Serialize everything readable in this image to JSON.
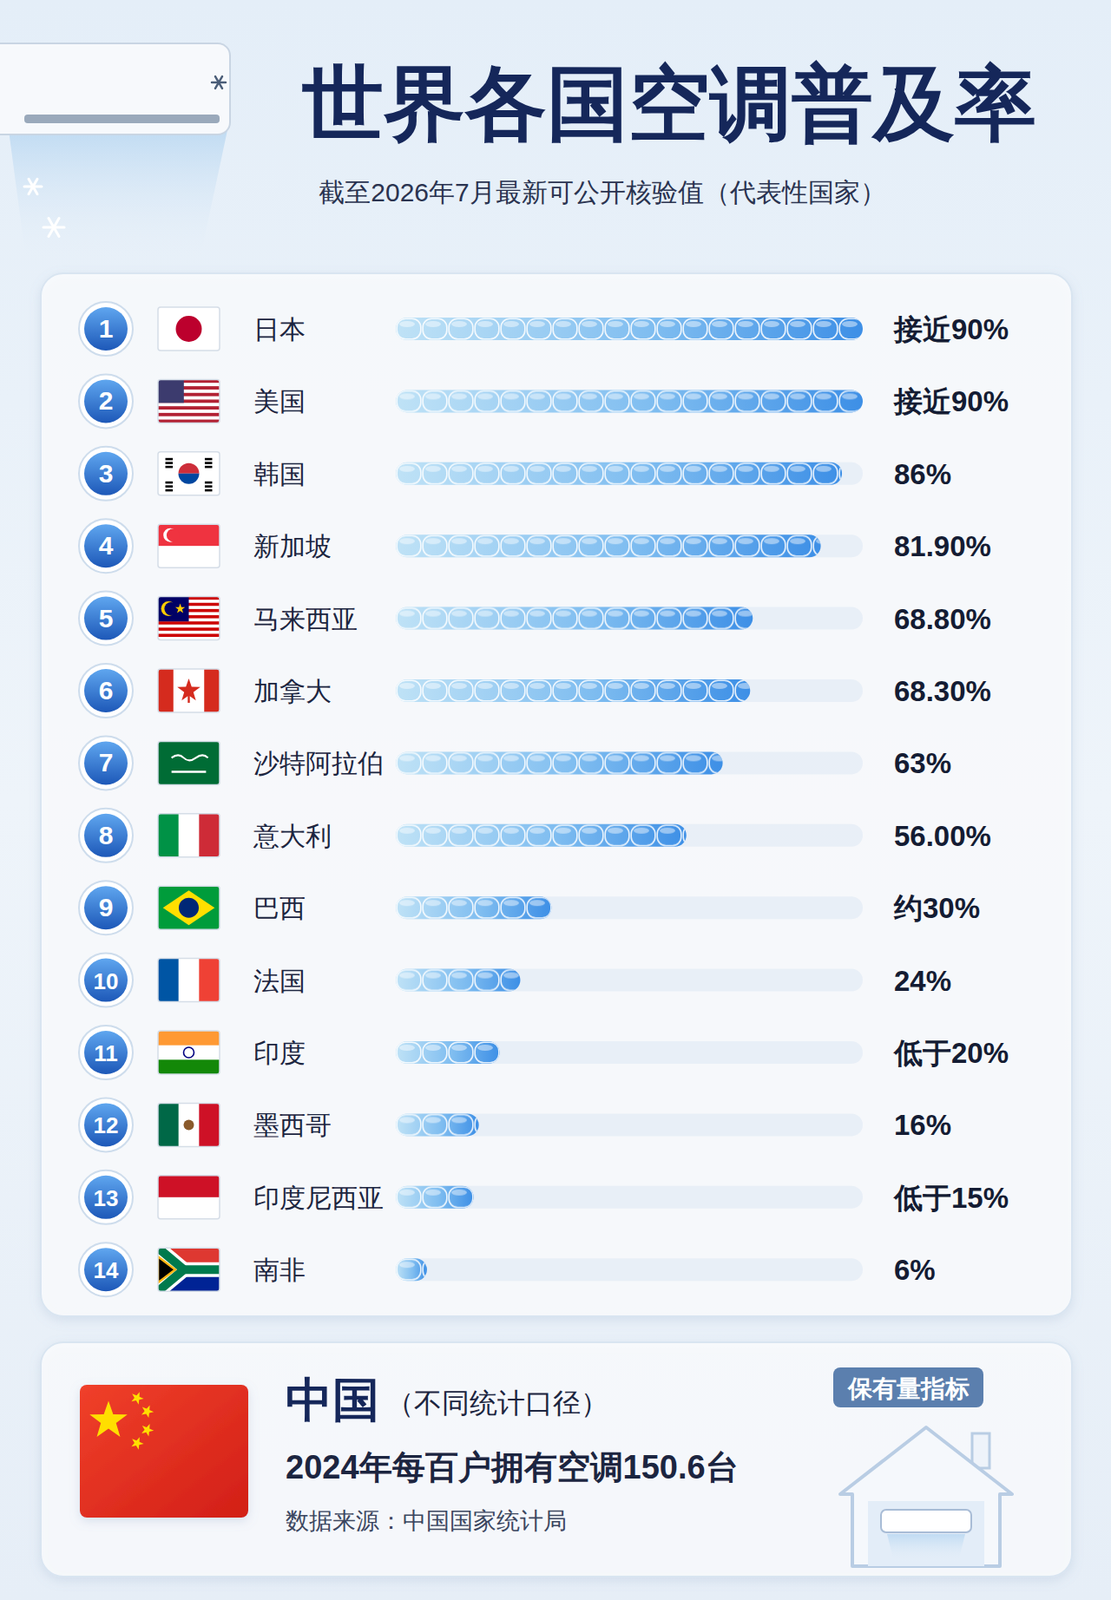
{
  "chart_data": {
    "type": "bar",
    "orientation": "horizontal",
    "title": "世界各国空调普及率",
    "subtitle": "截至2026年7月最新可公开核验值（代表性国家）",
    "categories": [
      "日本",
      "美国",
      "韩国",
      "新加坡",
      "马来西亚",
      "加拿大",
      "沙特阿拉伯",
      "意大利",
      "巴西",
      "法国",
      "印度",
      "墨西哥",
      "印度尼西亚",
      "南非"
    ],
    "ranks": [
      1,
      2,
      3,
      4,
      5,
      6,
      7,
      8,
      9,
      10,
      11,
      12,
      13,
      14
    ],
    "values": [
      90,
      90,
      86,
      81.9,
      68.8,
      68.3,
      63,
      56,
      30,
      24,
      20,
      16,
      15,
      6
    ],
    "value_labels": [
      "接近90%",
      "接近90%",
      "86%",
      "81.90%",
      "68.80%",
      "68.30%",
      "63%",
      "56.00%",
      "约30%",
      "24%",
      "低于20%",
      "16%",
      "低于15%",
      "6%"
    ],
    "color": "#3d8fe6",
    "xlim": [
      0,
      90
    ],
    "tick_labels": false,
    "grid": false,
    "data_labels": true
  },
  "china_panel": {
    "country": "中国",
    "note": "（不同统计口径）",
    "stat": "2024年每百户拥有空调150.6台",
    "source": "数据来源：中国国家统计局",
    "badge": "保有量指标"
  }
}
